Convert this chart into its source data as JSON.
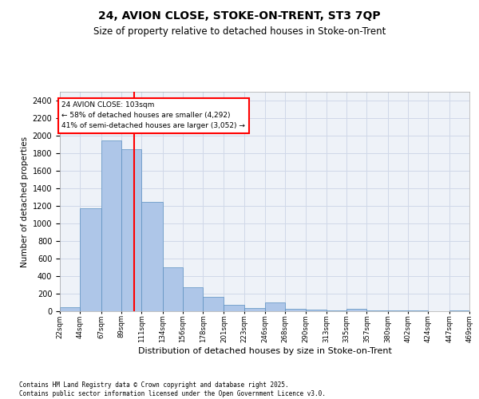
{
  "title1": "24, AVION CLOSE, STOKE-ON-TRENT, ST3 7QP",
  "title2": "Size of property relative to detached houses in Stoke-on-Trent",
  "xlabel": "Distribution of detached houses by size in Stoke-on-Trent",
  "ylabel": "Number of detached properties",
  "annotation_line1": "24 AVION CLOSE: 103sqm",
  "annotation_line2": "← 58% of detached houses are smaller (4,292)",
  "annotation_line3": "41% of semi-detached houses are larger (3,052) →",
  "footer1": "Contains HM Land Registry data © Crown copyright and database right 2025.",
  "footer2": "Contains public sector information licensed under the Open Government Licence v3.0.",
  "bar_color": "#aec6e8",
  "bar_edge_color": "#5a8fc0",
  "grid_color": "#d0d8e8",
  "background_color": "#eef2f8",
  "red_line_x": 103,
  "bin_edges": [
    22,
    44,
    67,
    89,
    111,
    134,
    156,
    178,
    201,
    223,
    246,
    268,
    290,
    313,
    335,
    357,
    380,
    402,
    424,
    447,
    469
  ],
  "bar_heights": [
    50,
    1175,
    1950,
    1850,
    1250,
    500,
    270,
    160,
    75,
    40,
    100,
    25,
    15,
    10,
    30,
    5,
    5,
    5,
    0,
    10
  ],
  "ylim": [
    0,
    2500
  ],
  "yticks": [
    0,
    200,
    400,
    600,
    800,
    1000,
    1200,
    1400,
    1600,
    1800,
    2000,
    2200,
    2400
  ],
  "title1_fontsize": 10,
  "title2_fontsize": 8.5,
  "ylabel_fontsize": 7.5,
  "xlabel_fontsize": 8,
  "ytick_fontsize": 7,
  "xtick_fontsize": 6.2
}
